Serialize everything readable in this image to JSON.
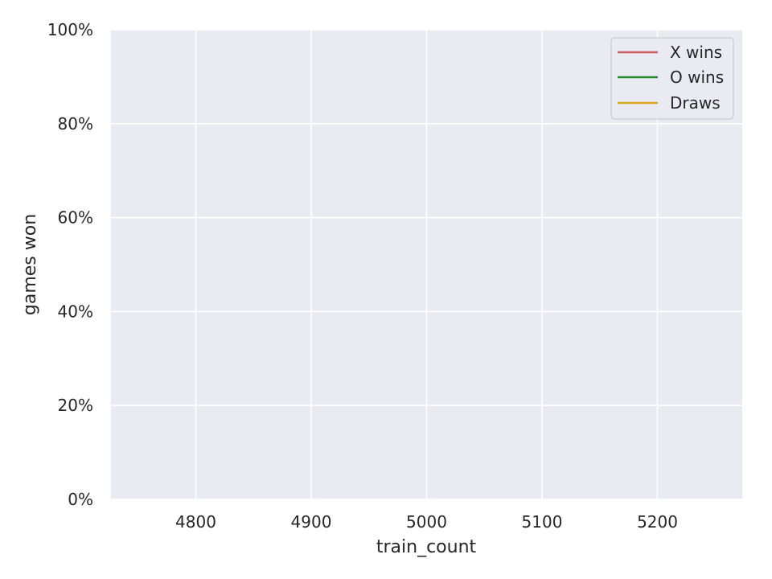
{
  "chart_data": {
    "type": "line",
    "title": "",
    "xlabel": "train_count",
    "ylabel": "games won",
    "xlim": [
      4726.5,
      5273.5
    ],
    "ylim": [
      0,
      1
    ],
    "x_ticks": [
      4800,
      4900,
      5000,
      5100,
      5200
    ],
    "x_tick_labels": [
      "4800",
      "4900",
      "5000",
      "5100",
      "5200"
    ],
    "y_ticks": [
      0,
      0.2,
      0.4,
      0.6,
      0.8,
      1.0
    ],
    "y_tick_labels": [
      "0%",
      "20%",
      "40%",
      "60%",
      "80%",
      "100%"
    ],
    "grid": true,
    "legend_position": "top-right",
    "series": [
      {
        "name": "X wins",
        "color": "#cd5c5c",
        "x": [],
        "y": []
      },
      {
        "name": "O wins",
        "color": "#228b22",
        "x": [],
        "y": []
      },
      {
        "name": "Draws",
        "color": "#daa520",
        "x": [],
        "y": []
      }
    ],
    "colors": {
      "plot_background": "#eaeaf2",
      "grid": "#ffffff",
      "text": "#262626"
    }
  }
}
